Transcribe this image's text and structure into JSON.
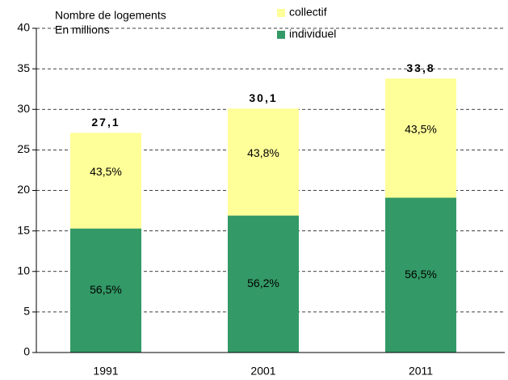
{
  "chart_data": {
    "type": "stacked_bar",
    "title": "Nombre de logements",
    "subtitle": "En millions",
    "categories": [
      "1991",
      "2001",
      "2011"
    ],
    "series": [
      {
        "name": "individuel",
        "color": "#339966",
        "values": [
          15.3,
          16.9,
          19.1
        ],
        "segment_labels": [
          "56,5%",
          "56,2%",
          "56,5%"
        ]
      },
      {
        "name": "collectif",
        "color": "#ffff99",
        "values": [
          11.8,
          13.2,
          14.7
        ],
        "segment_labels": [
          "43,5%",
          "43,8%",
          "43,5%"
        ]
      }
    ],
    "totals": [
      27.1,
      30.1,
      33.8
    ],
    "total_labels": [
      "27,1",
      "30,1",
      "33,8"
    ],
    "ylim": [
      0,
      40
    ],
    "yticks": [
      0,
      5,
      10,
      15,
      20,
      25,
      30,
      35,
      40
    ],
    "grid": true,
    "legend": "top"
  }
}
